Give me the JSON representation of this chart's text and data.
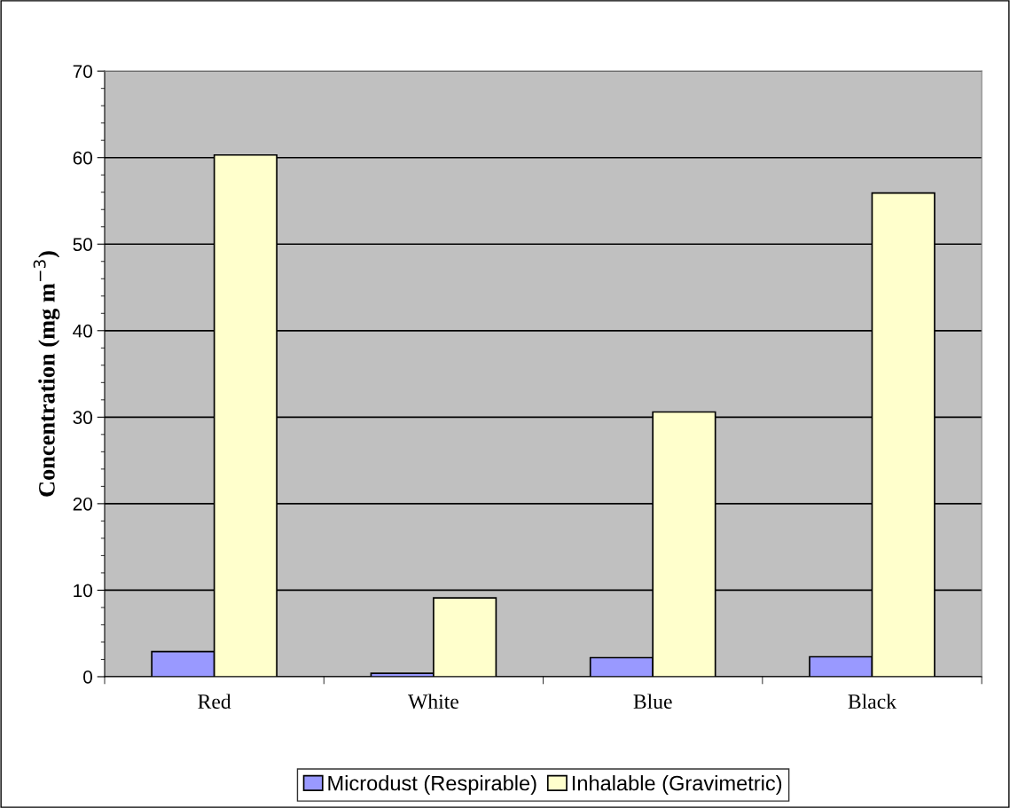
{
  "chart_data": {
    "type": "bar",
    "ylabel": "Concentration (mg m$^{−3}$)",
    "categories": [
      "Red",
      "White",
      "Blue",
      "Black"
    ],
    "series": [
      {
        "name": "Microdust (Respirable)",
        "color": "#9999ff",
        "values": [
          2.9,
          0.4,
          2.2,
          2.3
        ]
      },
      {
        "name": "Inhalable (Gravimetric)",
        "color": "#ffffcc",
        "values": [
          60.3,
          9.1,
          30.6,
          55.9
        ]
      }
    ],
    "ylim": [
      0,
      70
    ],
    "yticks": [
      0,
      10,
      20,
      30,
      40,
      50,
      60,
      70
    ],
    "grid": "y",
    "legend": "bottom"
  }
}
